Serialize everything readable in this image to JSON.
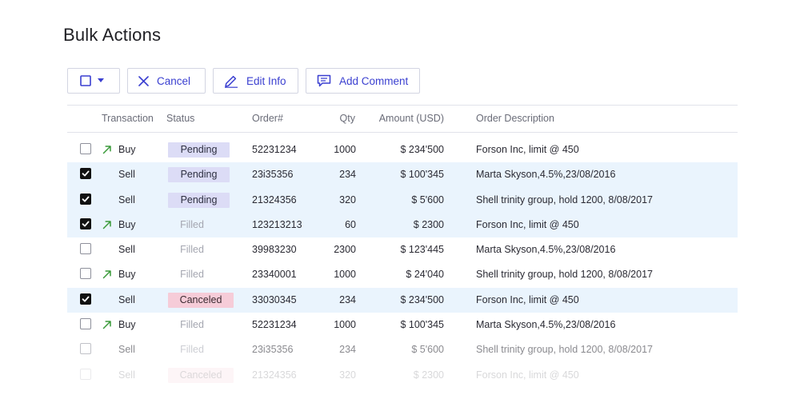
{
  "page": {
    "title": "Bulk Actions"
  },
  "toolbar": {
    "cancel_label": "Cancel",
    "edit_label": "Edit Info",
    "comment_label": "Add Comment",
    "accent": "#3a3fd0"
  },
  "table": {
    "columns": {
      "transaction": "Transaction",
      "status": "Status",
      "order": "Order#",
      "qty": "Qty",
      "amount": "Amount (USD)",
      "description": "Order Description"
    },
    "rows": [
      {
        "checked": false,
        "type": "Buy",
        "status": "Pending",
        "order": "52231234",
        "qty": "1000",
        "amount": "$ 234'500",
        "description": "Forson Inc, limit @ 450"
      },
      {
        "checked": true,
        "type": "Sell",
        "status": "Pending",
        "order": "23i35356",
        "qty": "234",
        "amount": "$ 100'345",
        "description": "Marta Skyson,4.5%,23/08/2016"
      },
      {
        "checked": true,
        "type": "Sell",
        "status": "Pending",
        "order": "21324356",
        "qty": "320",
        "amount": "$ 5'600",
        "description": "Shell trinity group, hold 1200, 8/08/2017"
      },
      {
        "checked": true,
        "type": "Buy",
        "status": "Filled",
        "order": "123213213",
        "qty": "60",
        "amount": "$ 2300",
        "description": "Forson Inc, limit @ 450"
      },
      {
        "checked": false,
        "type": "Sell",
        "status": "Filled",
        "order": "39983230",
        "qty": "2300",
        "amount": "$ 123'445",
        "description": "Marta Skyson,4.5%,23/08/2016"
      },
      {
        "checked": false,
        "type": "Buy",
        "status": "Filled",
        "order": "23340001",
        "qty": "1000",
        "amount": "$ 24'040",
        "description": "Shell trinity group, hold 1200, 8/08/2017"
      },
      {
        "checked": true,
        "type": "Sell",
        "status": "Canceled",
        "order": "33030345",
        "qty": "234",
        "amount": "$ 234'500",
        "description": "Forson Inc, limit @ 450"
      },
      {
        "checked": false,
        "type": "Buy",
        "status": "Filled",
        "order": "52231234",
        "qty": "1000",
        "amount": "$ 100'345",
        "description": "Marta Skyson,4.5%,23/08/2016"
      },
      {
        "checked": false,
        "type": "Sell",
        "status": "Filled",
        "order": "23i35356",
        "qty": "234",
        "amount": "$ 5'600",
        "description": "Shell trinity group, hold 1200, 8/08/2017"
      },
      {
        "checked": false,
        "type": "Sell",
        "status": "Canceled",
        "order": "21324356",
        "qty": "320",
        "amount": "$ 2300",
        "description": "Forson Inc, limit @ 450"
      }
    ]
  },
  "colors": {
    "selected_row": "#eaf4fd",
    "pending_badge": "#dcdcf6",
    "canceled_badge": "#f6ccd8",
    "buy_arrow": "#3a9a3a"
  }
}
